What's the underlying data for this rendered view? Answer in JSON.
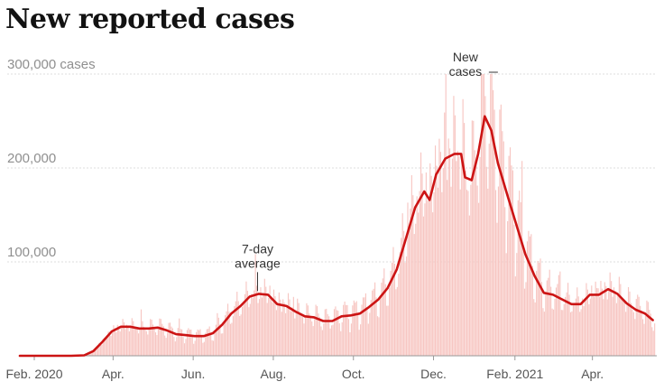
{
  "chart_data": {
    "type": "bar",
    "title": "New reported cases",
    "xlabel": "",
    "ylabel": "",
    "grid": true,
    "ylim": [
      0,
      300000
    ],
    "y_ticks": [
      {
        "value": 100000,
        "label": "100,000"
      },
      {
        "value": 200000,
        "label": "200,000"
      },
      {
        "value": 300000,
        "label": "300,000 cases"
      }
    ],
    "x_ticks": [
      {
        "date": "2020-02-01",
        "label": "Feb. 2020"
      },
      {
        "date": "2020-04-01",
        "label": "Apr."
      },
      {
        "date": "2020-06-01",
        "label": "Jun."
      },
      {
        "date": "2020-08-01",
        "label": "Aug."
      },
      {
        "date": "2020-10-01",
        "label": "Oct."
      },
      {
        "date": "2020-12-01",
        "label": "Dec."
      },
      {
        "date": "2021-02-01",
        "label": "Feb. 2021"
      },
      {
        "date": "2021-04-01",
        "label": "Apr."
      }
    ],
    "x_range": [
      "2020-01-21",
      "2021-05-20"
    ],
    "series": [
      {
        "name": "New cases",
        "kind": "daily-bars",
        "color": "#f7c6c2",
        "note": "daily values fluctuate around the 7-day average"
      },
      {
        "name": "7-day average",
        "kind": "line",
        "color": "#cc1414",
        "points": [
          [
            "2020-01-21",
            0
          ],
          [
            "2020-02-29",
            0
          ],
          [
            "2020-03-10",
            500
          ],
          [
            "2020-03-17",
            5000
          ],
          [
            "2020-03-24",
            15000
          ],
          [
            "2020-03-31",
            26000
          ],
          [
            "2020-04-07",
            31000
          ],
          [
            "2020-04-14",
            31000
          ],
          [
            "2020-04-21",
            29000
          ],
          [
            "2020-04-28",
            29000
          ],
          [
            "2020-05-05",
            30000
          ],
          [
            "2020-05-12",
            27000
          ],
          [
            "2020-05-19",
            23000
          ],
          [
            "2020-05-26",
            22000
          ],
          [
            "2020-06-02",
            21000
          ],
          [
            "2020-06-09",
            21000
          ],
          [
            "2020-06-16",
            24000
          ],
          [
            "2020-06-23",
            33000
          ],
          [
            "2020-06-30",
            45000
          ],
          [
            "2020-07-07",
            53000
          ],
          [
            "2020-07-14",
            63000
          ],
          [
            "2020-07-21",
            66000
          ],
          [
            "2020-07-28",
            65000
          ],
          [
            "2020-08-04",
            55000
          ],
          [
            "2020-08-11",
            53000
          ],
          [
            "2020-08-18",
            47000
          ],
          [
            "2020-08-25",
            42000
          ],
          [
            "2020-09-01",
            41000
          ],
          [
            "2020-09-08",
            37000
          ],
          [
            "2020-09-15",
            37000
          ],
          [
            "2020-09-22",
            42000
          ],
          [
            "2020-09-29",
            43000
          ],
          [
            "2020-10-06",
            45000
          ],
          [
            "2020-10-13",
            52000
          ],
          [
            "2020-10-20",
            60000
          ],
          [
            "2020-10-27",
            72000
          ],
          [
            "2020-11-03",
            92000
          ],
          [
            "2020-11-10",
            125000
          ],
          [
            "2020-11-17",
            158000
          ],
          [
            "2020-11-24",
            175000
          ],
          [
            "2020-11-28",
            166000
          ],
          [
            "2020-12-03",
            193000
          ],
          [
            "2020-12-10",
            210000
          ],
          [
            "2020-12-17",
            215000
          ],
          [
            "2020-12-22",
            215000
          ],
          [
            "2020-12-25",
            190000
          ],
          [
            "2020-12-30",
            187000
          ],
          [
            "2021-01-04",
            215000
          ],
          [
            "2021-01-09",
            255000
          ],
          [
            "2021-01-14",
            240000
          ],
          [
            "2021-01-19",
            205000
          ],
          [
            "2021-01-26",
            172000
          ],
          [
            "2021-02-02",
            140000
          ],
          [
            "2021-02-09",
            108000
          ],
          [
            "2021-02-16",
            85000
          ],
          [
            "2021-02-23",
            67000
          ],
          [
            "2021-03-02",
            65000
          ],
          [
            "2021-03-09",
            60000
          ],
          [
            "2021-03-16",
            55000
          ],
          [
            "2021-03-23",
            55000
          ],
          [
            "2021-03-30",
            65000
          ],
          [
            "2021-04-06",
            65000
          ],
          [
            "2021-04-13",
            71000
          ],
          [
            "2021-04-20",
            66000
          ],
          [
            "2021-04-27",
            56000
          ],
          [
            "2021-05-04",
            49000
          ],
          [
            "2021-05-11",
            45000
          ],
          [
            "2021-05-17",
            38000
          ]
        ]
      }
    ],
    "annotations": [
      {
        "target": "New cases",
        "lines": [
          "New",
          "cases"
        ],
        "date": "2021-01-08",
        "value": 300000
      },
      {
        "target": "7-day average",
        "lines": [
          "7-day",
          "average"
        ],
        "date": "2020-07-20",
        "value": 66000
      }
    ]
  }
}
